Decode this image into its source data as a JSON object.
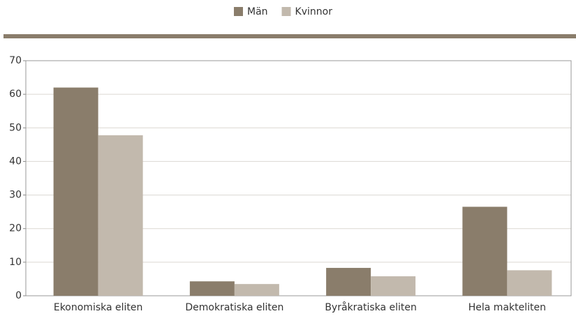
{
  "chart_data": {
    "type": "bar",
    "categories": [
      "Ekonomiska eliten",
      "Demokratiska eliten",
      "Byråkratiska eliten",
      "Hela makteliten"
    ],
    "series": [
      {
        "name": "Män",
        "color": "#8a7d6b",
        "values": [
          62,
          4.3,
          8.3,
          26.5
        ]
      },
      {
        "name": "Kvinnor",
        "color": "#c2b9ad",
        "values": [
          47.8,
          3.5,
          5.8,
          7.6
        ]
      }
    ],
    "ylim": [
      0,
      70
    ],
    "yticks": [
      0,
      10,
      20,
      30,
      40,
      50,
      60,
      70
    ],
    "grid": true,
    "legend": "top"
  }
}
